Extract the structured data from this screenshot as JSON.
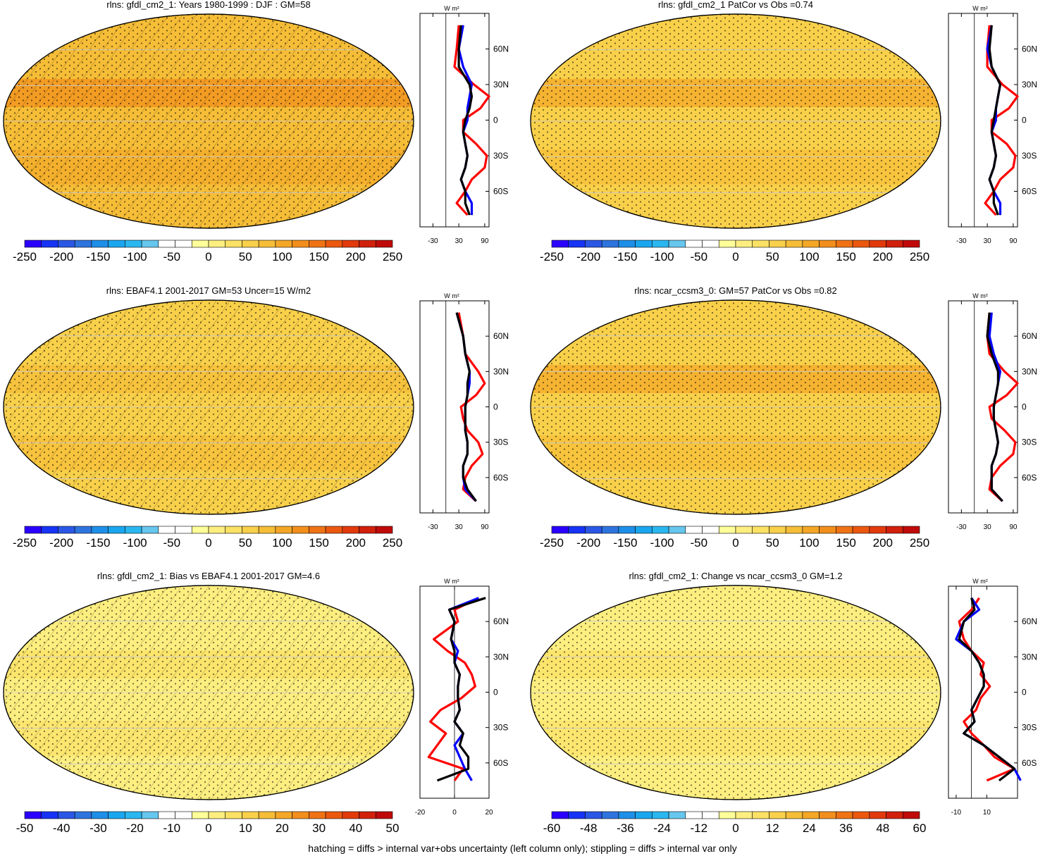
{
  "colors": {
    "neg": [
      "#2a00ff",
      "#1733f5",
      "#2a57e6",
      "#2e74de",
      "#1e8fe8",
      "#19a6ef",
      "#2ab7f0",
      "#66c6ee"
    ],
    "pos": [
      "#ffff99",
      "#fdee80",
      "#fbe164",
      "#f9d04a",
      "#f6bd37",
      "#f4a726",
      "#f28e1b",
      "#ef7314",
      "#ec580f",
      "#e23a0c",
      "#d1200b",
      "#c00a0a"
    ],
    "obs_line": "#ff0000",
    "model_line": "#0000ff",
    "other_line": "#000000"
  },
  "chart_data": [
    {
      "type": "heatmap",
      "panel": "top-left",
      "title": "rlns: gfdl_cm2_1: Years 1980-1999 : DJF : GM=58",
      "colorbar_labels": [
        "-250",
        "-200",
        "-150",
        "-100",
        "-50",
        "0",
        "50",
        "100",
        "150",
        "200",
        "250"
      ],
      "map_fill_level": 0.66,
      "hatching": true,
      "stippling": true,
      "profile": {
        "unit": "W m²",
        "xlim": [
          -60,
          100
        ],
        "xticks": [
          "-30",
          "30",
          "90"
        ],
        "yticks": [
          "60N",
          "30N",
          "0",
          "30S",
          "60S"
        ],
        "series": [
          {
            "color": "#ff0000",
            "lat": [
              80,
              60,
              45,
              30,
              20,
              10,
              0,
              -10,
              -20,
              -30,
              -40,
              -50,
              -60,
              -70,
              -80
            ],
            "values": [
              30,
              25,
              20,
              65,
              100,
              80,
              40,
              40,
              70,
              95,
              90,
              60,
              45,
              25,
              50
            ]
          },
          {
            "color": "#0000ff",
            "lat": [
              80,
              60,
              45,
              30,
              20,
              10,
              0,
              -10,
              -20,
              -30,
              -40,
              -50,
              -60,
              -70,
              -80
            ],
            "values": [
              40,
              30,
              40,
              60,
              55,
              50,
              50,
              40,
              45,
              50,
              45,
              35,
              45,
              60,
              60
            ]
          },
          {
            "color": "#000000",
            "lat": [
              80,
              60,
              45,
              30,
              20,
              10,
              0,
              -10,
              -20,
              -30,
              -40,
              -50,
              -60,
              -70,
              -80
            ],
            "values": [
              35,
              30,
              30,
              55,
              60,
              55,
              45,
              40,
              45,
              50,
              45,
              35,
              45,
              45,
              55
            ]
          }
        ]
      }
    },
    {
      "type": "heatmap",
      "panel": "top-right",
      "title": "rlns: gfdl_cm2_1 PatCor vs Obs =0.74",
      "colorbar_labels": [
        "-250",
        "-200",
        "-150",
        "-100",
        "-50",
        "0",
        "50",
        "100",
        "150",
        "200",
        "250"
      ],
      "map_fill_level": 0.62,
      "hatching": false,
      "stippling": true,
      "profile": {
        "unit": "W m²",
        "xlim": [
          -60,
          100
        ],
        "xticks": [
          "-30",
          "30",
          "90"
        ],
        "yticks": [
          "60N",
          "30N",
          "0",
          "30S",
          "60S"
        ],
        "series": [
          {
            "color": "#ff0000",
            "lat": [
              80,
              60,
              45,
              30,
              20,
              10,
              0,
              -10,
              -20,
              -30,
              -40,
              -50,
              -60,
              -70,
              -80
            ],
            "values": [
              35,
              30,
              30,
              65,
              100,
              80,
              40,
              40,
              75,
              95,
              90,
              60,
              45,
              25,
              50
            ]
          },
          {
            "color": "#0000ff",
            "lat": [
              80,
              60,
              45,
              30,
              20,
              10,
              0,
              -10,
              -20,
              -30,
              -40,
              -50,
              -60,
              -70,
              -80
            ],
            "values": [
              40,
              30,
              40,
              60,
              55,
              50,
              50,
              40,
              45,
              50,
              45,
              35,
              45,
              60,
              60
            ]
          },
          {
            "color": "#000000",
            "lat": [
              80,
              60,
              45,
              30,
              20,
              10,
              0,
              -10,
              -20,
              -30,
              -40,
              -50,
              -60,
              -70,
              -80
            ],
            "values": [
              40,
              35,
              40,
              60,
              55,
              50,
              45,
              40,
              45,
              50,
              45,
              35,
              45,
              45,
              55
            ]
          }
        ]
      }
    },
    {
      "type": "heatmap",
      "panel": "middle-left",
      "title": "rlns: EBAF4.1 2001-2017 GM=53 Uncer=15 W/m2",
      "colorbar_labels": [
        "-250",
        "-200",
        "-150",
        "-100",
        "-50",
        "0",
        "50",
        "100",
        "150",
        "200",
        "250"
      ],
      "map_fill_level": 0.6,
      "hatching": true,
      "stippling": true,
      "profile": {
        "unit": "W m²",
        "xlim": [
          -60,
          100
        ],
        "xticks": [
          "-30",
          "30",
          "90"
        ],
        "yticks": [
          "60N",
          "30N",
          "0",
          "30S",
          "60S"
        ],
        "series": [
          {
            "color": "#ff0000",
            "lat": [
              80,
              60,
              45,
              30,
              20,
              10,
              0,
              -10,
              -20,
              -30,
              -40,
              -50,
              -60,
              -70,
              -80
            ],
            "values": [
              30,
              40,
              45,
              75,
              90,
              70,
              35,
              40,
              50,
              75,
              85,
              60,
              45,
              40,
              70
            ]
          },
          {
            "color": "#0000ff",
            "lat": [
              80,
              60,
              45,
              30,
              20,
              10,
              0,
              -10,
              -20,
              -30,
              -40,
              -50,
              -60,
              -70,
              -80
            ],
            "values": [
              25,
              40,
              45,
              55,
              55,
              50,
              45,
              45,
              45,
              50,
              50,
              40,
              40,
              45,
              70
            ]
          },
          {
            "color": "#000000",
            "lat": [
              80,
              60,
              45,
              30,
              20,
              10,
              0,
              -10,
              -20,
              -30,
              -40,
              -50,
              -60,
              -70,
              -80
            ],
            "values": [
              25,
              40,
              45,
              55,
              50,
              50,
              45,
              45,
              45,
              50,
              50,
              40,
              40,
              50,
              70
            ]
          }
        ]
      }
    },
    {
      "type": "heatmap",
      "panel": "middle-right",
      "title": "rlns: ncar_ccsm3_0: GM=57 PatCor vs Obs =0.82",
      "colorbar_labels": [
        "-250",
        "-200",
        "-150",
        "-100",
        "-50",
        "0",
        "50",
        "100",
        "150",
        "200",
        "250"
      ],
      "map_fill_level": 0.62,
      "hatching": false,
      "stippling": true,
      "profile": {
        "unit": "W m²",
        "xlim": [
          -60,
          100
        ],
        "xticks": [
          "-30",
          "30",
          "90"
        ],
        "yticks": [
          "60N",
          "30N",
          "0",
          "30S",
          "60S"
        ],
        "series": [
          {
            "color": "#ff0000",
            "lat": [
              80,
              60,
              45,
              30,
              20,
              10,
              0,
              -10,
              -20,
              -30,
              -40,
              -50,
              -60,
              -70,
              -80
            ],
            "values": [
              35,
              30,
              35,
              70,
              100,
              75,
              35,
              40,
              70,
              95,
              90,
              60,
              40,
              35,
              65
            ]
          },
          {
            "color": "#0000ff",
            "lat": [
              80,
              60,
              45,
              30,
              20,
              10,
              0,
              -10,
              -20,
              -30,
              -40,
              -50,
              -60,
              -70,
              -80
            ],
            "values": [
              40,
              35,
              45,
              60,
              55,
              50,
              45,
              45,
              50,
              55,
              50,
              40,
              40,
              40,
              65
            ]
          },
          {
            "color": "#000000",
            "lat": [
              80,
              60,
              45,
              30,
              20,
              10,
              0,
              -10,
              -20,
              -30,
              -40,
              -50,
              -60,
              -70,
              -80
            ],
            "values": [
              35,
              30,
              40,
              55,
              55,
              50,
              45,
              45,
              50,
              55,
              50,
              40,
              40,
              40,
              65
            ]
          }
        ]
      }
    },
    {
      "type": "heatmap",
      "panel": "bottom-left",
      "title": "rlns: gfdl_cm2_1: Bias vs EBAF4.1 2001-2017 GM=4.6",
      "colorbar_labels": [
        "-50",
        "-40",
        "-30",
        "-20",
        "-10",
        "0",
        "10",
        "20",
        "30",
        "40",
        "50"
      ],
      "map_fill_level": 0.5,
      "hatching": true,
      "stippling": true,
      "profile": {
        "unit": "W m²",
        "xlim": [
          -20,
          20
        ],
        "xticks": [
          "-20",
          "0",
          "20"
        ],
        "yticks": [
          "60N",
          "30N",
          "0",
          "30S",
          "60S"
        ],
        "series": [
          {
            "color": "#ff0000",
            "lat": [
              80,
              70,
              60,
              45,
              35,
              25,
              15,
              5,
              -5,
              -15,
              -25,
              -35,
              -45,
              -55,
              -65,
              -75
            ],
            "values": [
              14,
              0,
              2,
              -12,
              -4,
              6,
              10,
              12,
              4,
              -8,
              -14,
              -5,
              -10,
              -15,
              5,
              0
            ]
          },
          {
            "color": "#0000ff",
            "lat": [
              80,
              70,
              60,
              45,
              35,
              25,
              15,
              5,
              -5,
              -15,
              -25,
              -35,
              -45,
              -55,
              -65,
              -75
            ],
            "values": [
              14,
              -3,
              0,
              -2,
              2,
              0,
              3,
              2,
              2,
              3,
              0,
              5,
              0,
              3,
              6,
              10
            ]
          },
          {
            "color": "#000000",
            "lat": [
              80,
              70,
              60,
              45,
              35,
              25,
              15,
              5,
              -5,
              -15,
              -25,
              -35,
              -45,
              -55,
              -65,
              -75
            ],
            "values": [
              18,
              -3,
              0,
              -2,
              0,
              0,
              3,
              2,
              2,
              3,
              0,
              5,
              3,
              8,
              8,
              -10
            ]
          }
        ]
      }
    },
    {
      "type": "heatmap",
      "panel": "bottom-right",
      "title": "rlns: gfdl_cm2_1: Change vs ncar_ccsm3_0 GM=1.2",
      "colorbar_labels": [
        "-60",
        "-48",
        "-36",
        "-24",
        "-12",
        "0",
        "12",
        "24",
        "36",
        "48",
        "60"
      ],
      "map_fill_level": 0.5,
      "hatching": false,
      "stippling": true,
      "profile": {
        "unit": "W m²",
        "xlim": [
          -15,
          30
        ],
        "xticks": [
          "-10",
          "10"
        ],
        "yticks": [
          "60N",
          "30N",
          "0",
          "30S",
          "60S"
        ],
        "series": [
          {
            "color": "#ff0000",
            "lat": [
              80,
              70,
              60,
              45,
              35,
              25,
              15,
              5,
              -5,
              -15,
              -25,
              -35,
              -45,
              -55,
              -65,
              -75
            ],
            "values": [
              5,
              0,
              -8,
              -5,
              0,
              8,
              6,
              12,
              6,
              3,
              -5,
              0,
              8,
              15,
              28,
              10
            ]
          },
          {
            "color": "#0000ff",
            "lat": [
              80,
              70,
              60,
              45,
              35,
              25,
              15,
              5,
              -5,
              -15,
              -25,
              -35,
              -45,
              -55,
              -65,
              -75
            ],
            "values": [
              0,
              5,
              -5,
              -10,
              0,
              5,
              8,
              8,
              4,
              0,
              2,
              -5,
              8,
              18,
              28,
              32
            ]
          },
          {
            "color": "#000000",
            "lat": [
              80,
              70,
              60,
              45,
              35,
              25,
              15,
              5,
              -5,
              -15,
              -25,
              -35,
              -45,
              -55,
              -65,
              -75
            ],
            "values": [
              0,
              2,
              -5,
              -8,
              0,
              5,
              8,
              8,
              4,
              0,
              2,
              -5,
              8,
              18,
              28,
              18
            ]
          }
        ]
      }
    }
  ],
  "footer": "hatching = diffs > internal var+obs uncertainty (left column only); stippling = diffs > internal var only"
}
